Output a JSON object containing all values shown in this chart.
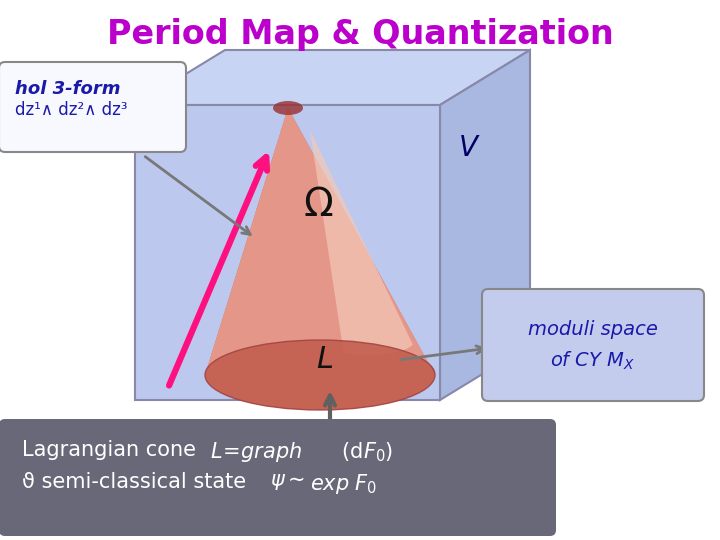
{
  "title": "Period Map & Quantization",
  "title_color": "#bb00cc",
  "title_fontsize": 24,
  "bg_color": "#ffffff",
  "cube_left_color": "#bcc8ee",
  "cube_right_color": "#a8b8e0",
  "cube_top_color": "#c8d4f4",
  "cube_edge_color": "#8888aa",
  "label_V": "V",
  "label_V_color": "#000066",
  "label_Omega": "Ω",
  "label_L": "L",
  "box1_text_line1": "hol 3-form",
  "box1_text_line2": "dz¹∧ dz²∧ dz³",
  "box1_bg": "#f8f8ff",
  "box1_border": "#888888",
  "box2_text_line1": "moduli space",
  "box2_text_line2": "of CY M",
  "box2_bg": "#c4ccee",
  "box2_border": "#888888",
  "bottom_box_bg": "#686878",
  "bottom_text_color": "#ffffff",
  "arrow_pink_color": "#ff1080",
  "arrow_gray_color": "#787878"
}
